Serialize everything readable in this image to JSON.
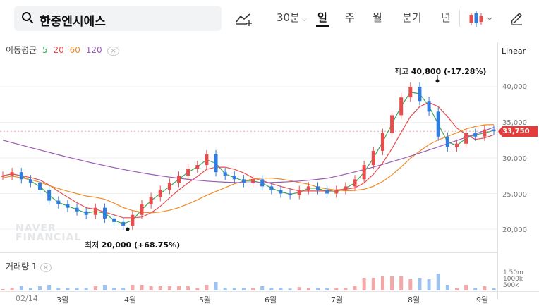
{
  "search": {
    "query": "한중엔시에스"
  },
  "toolbar": {
    "interval_30min": "30분",
    "tabs": [
      "일",
      "주",
      "월",
      "분기",
      "년"
    ],
    "active_tab": "일"
  },
  "indicators": {
    "ma_label": "이동평균",
    "ma_periods": [
      "5",
      "20",
      "60",
      "120"
    ],
    "ma_colors": [
      "#3aa85a",
      "#e84c4c",
      "#f08a24",
      "#9b59b6"
    ],
    "volume_label": "거래량 1"
  },
  "scale_type": "Linear",
  "price_axis": {
    "ticks": [
      "40,000",
      "35,000",
      "30,000",
      "25,000",
      "20,000"
    ],
    "current_price": "33,750"
  },
  "volume_axis": {
    "ticks": [
      "1.50m",
      "1000k",
      "500k"
    ]
  },
  "annotations": {
    "high": {
      "label": "최고",
      "value": "40,800 (-17.28%)"
    },
    "low": {
      "label": "최저",
      "value": "20,000 (+68.75%)"
    }
  },
  "watermark": [
    "NAVER",
    "FINANCIAL"
  ],
  "x_axis": {
    "labels": [
      "02/14",
      "3월",
      "4월",
      "5월",
      "6월",
      "7월",
      "8월",
      "9월"
    ]
  },
  "colors": {
    "up": "#e84c4c",
    "down": "#2f7de1",
    "brand": "#111111"
  },
  "chart_data": {
    "type": "candlestick",
    "period": "daily",
    "price_range": [
      19000,
      42000
    ],
    "high": 40800,
    "low": 20000,
    "last_close": 33750,
    "monthly_closes": [
      {
        "month": "02/14",
        "close": 27500
      },
      {
        "month": "3월",
        "close": 23000
      },
      {
        "month": "4월",
        "close": 21500
      },
      {
        "month": "5월",
        "close": 27000
      },
      {
        "month": "6월",
        "close": 26500
      },
      {
        "month": "7월",
        "close": 25000
      },
      {
        "month": "8월",
        "close": 39000
      },
      {
        "month": "9월",
        "close": 33750
      }
    ]
  }
}
